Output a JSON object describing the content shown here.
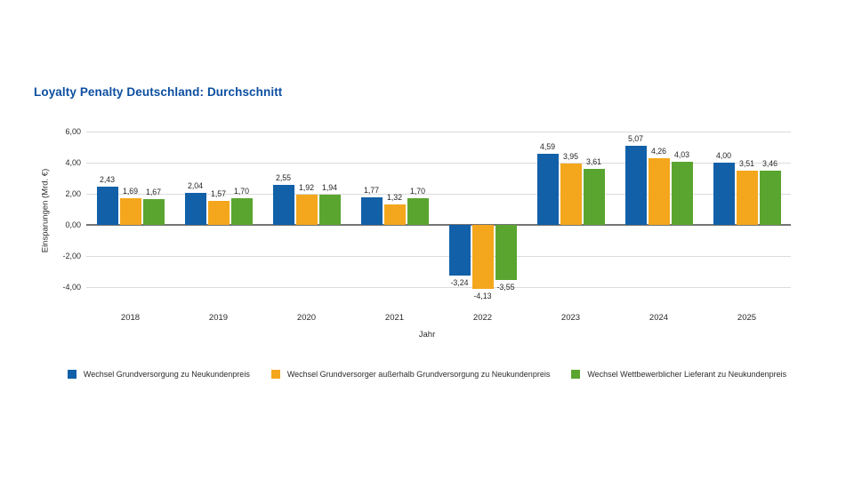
{
  "title": "Loyalty Penalty Deutschland: Durchschnitt",
  "colors": {
    "title": "#0d4fa1",
    "series_blue": "#1160a8",
    "series_orange": "#f4a71c",
    "series_green": "#5aa530",
    "grid": "#dbdbdb",
    "zero_line": "#757575",
    "text": "#2b2b2b"
  },
  "chart_data": {
    "type": "bar",
    "title": "Loyalty Penalty Deutschland: Durchschnitt",
    "xlabel": "Jahr",
    "ylabel": "Einsparungen (Mrd. €)",
    "categories": [
      "2018",
      "2019",
      "2020",
      "2021",
      "2022",
      "2023",
      "2024",
      "2025"
    ],
    "series": [
      {
        "name": "Wechsel Grundversorgung zu Neukundenpreis",
        "color": "#1160a8",
        "values": [
          2.43,
          2.04,
          2.55,
          1.77,
          -3.24,
          4.59,
          5.07,
          4.0
        ],
        "labels": [
          "2,43",
          "2,04",
          "2,55",
          "1,77",
          "-3,24",
          "4,59",
          "5,07",
          "4,00"
        ]
      },
      {
        "name": "Wechsel Grundversorger außerhalb Grundversorgung zu Neukundenpreis",
        "color": "#f4a71c",
        "values": [
          1.69,
          1.57,
          1.92,
          1.32,
          -4.13,
          3.95,
          4.26,
          3.51
        ],
        "labels": [
          "1,69",
          "1,57",
          "1,92",
          "1,32",
          "-4,13",
          "3,95",
          "4,26",
          "3,51"
        ]
      },
      {
        "name": "Wechsel Wettbewerblicher Lieferant zu Neukundenpreis",
        "color": "#5aa530",
        "values": [
          1.67,
          1.7,
          1.94,
          1.7,
          -3.55,
          3.61,
          4.03,
          3.46
        ],
        "labels": [
          "1,67",
          "1,70",
          "1,94",
          "1,70",
          "-3,55",
          "3,61",
          "4,03",
          "3,46"
        ]
      }
    ],
    "ylim": [
      -4,
      6
    ],
    "yticks": [
      6,
      4,
      2,
      0,
      -2,
      -4
    ],
    "ytick_labels": [
      "6,00",
      "4,00",
      "2,00",
      "0,00",
      "-2,00",
      "-4,00"
    ],
    "grid": true,
    "legend_position": "bottom"
  }
}
